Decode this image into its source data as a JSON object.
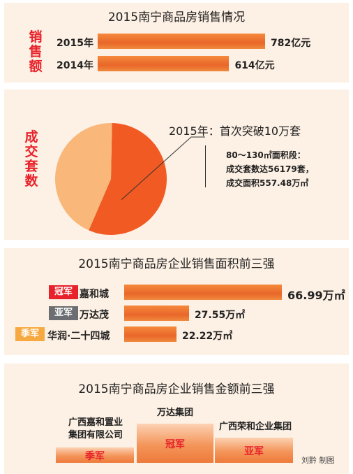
{
  "section1": {
    "title": "2015南宁商品房销售情况",
    "side_label": "销售额"
  },
  "section2": {
    "side_label": "成交套数",
    "headline": "2015年：首次突破10万套",
    "note_line1": "80～130㎡面积段：",
    "note_line2": "成交套数达56179套，",
    "note_line3": "成交面积557.48万㎡"
  },
  "section3": {
    "title": "2015南宁商品房企业销售面积前三强"
  },
  "section4": {
    "title": "2015南宁商品房企业销售金额前三强",
    "podium": [
      {
        "name_line1": "万达集团",
        "name_line2": "",
        "rank": "冠军"
      },
      {
        "name_line1": "广西嘉和置业",
        "name_line2": "集团有限公司",
        "rank": "季军"
      },
      {
        "name_line1": "广西荣和企业集团",
        "name_line2": "",
        "rank": "亚军"
      }
    ],
    "credit": "刘黔 制图"
  },
  "colors": {
    "bar_orange": "#ee6f2a",
    "pie_dark": "#f15a22",
    "pie_light": "#f9b77a",
    "title_red": "#e8222a",
    "rank_gold": "#e8222a",
    "rank_silver": "#6d6e71",
    "rank_bronze": "#f7a941"
  },
  "chart_data": [
    {
      "type": "bar",
      "orientation": "horizontal",
      "title": "2015南宁商品房销售情况",
      "categories": [
        "2015年",
        "2014年"
      ],
      "values": [
        782,
        614
      ],
      "value_labels": [
        "782亿元",
        "614亿元"
      ],
      "unit": "亿元"
    },
    {
      "type": "pie",
      "title": "2015年：首次突破10万套",
      "slices": [
        {
          "label": "80～130㎡面积段",
          "value": 56179,
          "color": "#f15a22"
        },
        {
          "label": "",
          "value": 43821,
          "color": "#f9b77a"
        }
      ]
    },
    {
      "type": "bar",
      "orientation": "horizontal",
      "title": "2015南宁商品房企业销售面积前三强",
      "categories": [
        "嘉和城",
        "万达茂",
        "华润·二十四城"
      ],
      "ranks": [
        "冠军",
        "亚军",
        "季军"
      ],
      "values": [
        66.99,
        27.55,
        22.22
      ],
      "value_labels": [
        "66.99万㎡",
        "27.55万㎡",
        "22.22万㎡"
      ],
      "unit": "万㎡"
    }
  ]
}
